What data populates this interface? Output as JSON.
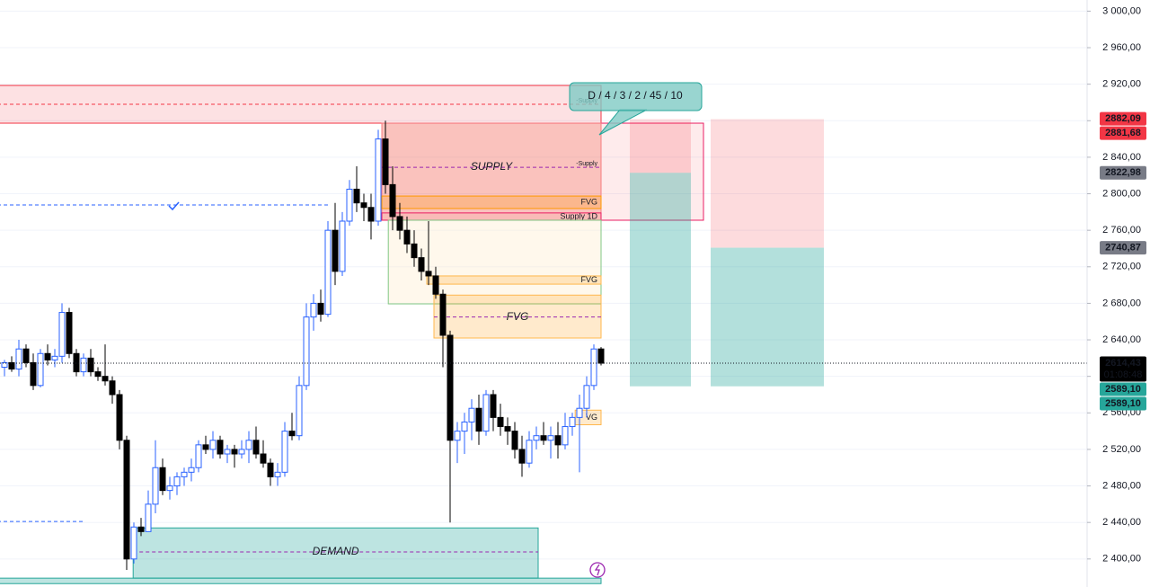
{
  "chart_data": {
    "type": "candlestick",
    "ylim": [
      2369.3,
      3012.2
    ],
    "yticks": [
      {
        "value": 2400,
        "label": "2 400,00"
      },
      {
        "value": 2440,
        "label": "2 440,00"
      },
      {
        "value": 2480,
        "label": "2 480,00"
      },
      {
        "value": 2520,
        "label": "2 520,00"
      },
      {
        "value": 2560,
        "label": "2 560,00"
      },
      {
        "value": 2600,
        "label": "2 600,00"
      },
      {
        "value": 2640,
        "label": "2 640,00"
      },
      {
        "value": 2680,
        "label": "2 680,00"
      },
      {
        "value": 2720,
        "label": "2 720,00"
      },
      {
        "value": 2760,
        "label": "2 760,00"
      },
      {
        "value": 2800,
        "label": "2 800,00"
      },
      {
        "value": 2840,
        "label": "2 840,00"
      },
      {
        "value": 2880,
        "label": "2 880,00"
      },
      {
        "value": 2920,
        "label": "2 920,00"
      },
      {
        "value": 2960,
        "label": "2 960,00"
      },
      {
        "value": 3000,
        "label": "3 000,00"
      }
    ],
    "grid": true,
    "up_color": "#2962ff",
    "down_color": "#000000",
    "open": [
      2610,
      2615,
      2608,
      2630,
      2615,
      2590,
      2625,
      2618,
      2622,
      2670,
      2625,
      2605,
      2620,
      2605,
      2600,
      2595,
      2580,
      2530,
      2400,
      2435,
      2430,
      2460,
      2500,
      2475,
      2480,
      2490,
      2495,
      2500,
      2525,
      2520,
      2530,
      2515,
      2520,
      2515,
      2520,
      2530,
      2515,
      2505,
      2490,
      2495,
      2540,
      2535,
      2590,
      2665,
      2680,
      2668,
      2760,
      2715,
      2770,
      2805,
      2790,
      2785,
      2770,
      2860,
      2810,
      2775,
      2760,
      2745,
      2730,
      2715,
      2710,
      2690,
      2645,
      2530,
      2540,
      2550,
      2565,
      2540,
      2580,
      2555,
      2545,
      2540,
      2520,
      2505,
      2530,
      2535,
      2530,
      2535,
      2525,
      2545,
      2555,
      2565,
      2590,
      2630
    ],
    "high": [
      2618,
      2622,
      2640,
      2635,
      2625,
      2630,
      2635,
      2630,
      2680,
      2675,
      2630,
      2625,
      2630,
      2610,
      2635,
      2600,
      2585,
      2535,
      2440,
      2445,
      2475,
      2530,
      2510,
      2490,
      2495,
      2500,
      2510,
      2530,
      2535,
      2540,
      2535,
      2525,
      2525,
      2530,
      2540,
      2545,
      2530,
      2510,
      2505,
      2550,
      2560,
      2600,
      2680,
      2690,
      2695,
      2770,
      2790,
      2780,
      2815,
      2830,
      2800,
      2800,
      2870,
      2880,
      2830,
      2790,
      2775,
      2760,
      2740,
      2770,
      2720,
      2695,
      2650,
      2550,
      2560,
      2575,
      2580,
      2585,
      2585,
      2570,
      2555,
      2550,
      2535,
      2540,
      2545,
      2550,
      2545,
      2550,
      2560,
      2560,
      2580,
      2600,
      2635,
      2632
    ],
    "low": [
      2600,
      2605,
      2600,
      2610,
      2585,
      2588,
      2612,
      2610,
      2615,
      2620,
      2600,
      2600,
      2600,
      2595,
      2590,
      2570,
      2520,
      2388,
      2395,
      2425,
      2430,
      2450,
      2470,
      2465,
      2470,
      2480,
      2485,
      2495,
      2515,
      2510,
      2510,
      2505,
      2500,
      2510,
      2505,
      2510,
      2500,
      2480,
      2480,
      2490,
      2530,
      2530,
      2585,
      2650,
      2660,
      2665,
      2700,
      2710,
      2765,
      2780,
      2770,
      2750,
      2765,
      2800,
      2760,
      2750,
      2735,
      2720,
      2705,
      2700,
      2685,
      2610,
      2440,
      2505,
      2515,
      2530,
      2525,
      2535,
      2540,
      2535,
      2525,
      2510,
      2490,
      2500,
      2520,
      2525,
      2510,
      2510,
      2520,
      2535,
      2495,
      2555,
      2585,
      2612
    ],
    "close": [
      2615,
      2608,
      2630,
      2615,
      2590,
      2625,
      2618,
      2622,
      2670,
      2625,
      2605,
      2620,
      2605,
      2600,
      2595,
      2580,
      2530,
      2400,
      2435,
      2430,
      2460,
      2500,
      2475,
      2480,
      2490,
      2495,
      2500,
      2525,
      2520,
      2530,
      2515,
      2520,
      2515,
      2520,
      2530,
      2515,
      2505,
      2490,
      2495,
      2540,
      2535,
      2590,
      2665,
      2680,
      2668,
      2760,
      2715,
      2770,
      2805,
      2790,
      2785,
      2770,
      2860,
      2810,
      2775,
      2760,
      2745,
      2730,
      2715,
      2710,
      2690,
      2645,
      2530,
      2540,
      2550,
      2565,
      2540,
      2580,
      2555,
      2545,
      2540,
      2520,
      2505,
      2530,
      2535,
      2530,
      2535,
      2525,
      2545,
      2555,
      2565,
      2590,
      2630,
      2614.43
    ],
    "zones": [
      {
        "from": -1,
        "to": 83,
        "low": 2877.3,
        "high": 2918.6,
        "mid": 2898,
        "color": "#f23645",
        "fill": "rgba(242,54,69,0.15)",
        "tag": "-Supply"
      },
      {
        "from": 52.5,
        "to": 97.25,
        "low": 2771,
        "high": 2877.3,
        "color": "#e91e63",
        "fill": "rgba(242,54,69,0.10)"
      },
      {
        "from": 52.5,
        "to": 83,
        "low": 2771,
        "high": 2877.3,
        "mid": 2829,
        "color": "#f77c80",
        "fill": "rgba(242,90,70,0.28)",
        "label": "SUPPLY",
        "tag": "-Supply"
      },
      {
        "from": 52.5,
        "to": 83,
        "low": 2783.8,
        "high": 2797.5,
        "color": "#ff9800",
        "fill": "rgba(255,152,0,0.25)",
        "label": "FVG"
      },
      {
        "from": 52.5,
        "to": 83,
        "low": 2771,
        "high": 2779,
        "color": "#e91e63",
        "fill": "rgba(242,54,69,0.05)",
        "label": "Supply 1D"
      },
      {
        "from": 53.4,
        "to": 83,
        "low": 2679.4,
        "high": 2771,
        "color": "#81c784",
        "fill": "rgba(255,236,200,0.35)"
      },
      {
        "from": 58.75,
        "to": 83,
        "low": 2701,
        "high": 2710,
        "color": "#ffb74d",
        "fill": "rgba(255,152,0,0.2)",
        "label": "FVG"
      },
      {
        "from": 59.75,
        "to": 83,
        "low": 2642,
        "high": 2689,
        "mid": 2665,
        "color": "#ffb74d",
        "fill": "rgba(255,152,0,0.2)",
        "label": "FVG"
      },
      {
        "from": 79.4,
        "to": 83,
        "low": 2547,
        "high": 2563,
        "color": "#ffb74d",
        "fill": "rgba(255,152,0,0.2)",
        "label": "VG"
      },
      {
        "from": 17.9,
        "to": 74.25,
        "low": 2379,
        "high": 2434,
        "mid": 2407.7,
        "color": "#26a69a",
        "fill": "rgba(38,166,154,0.3)",
        "label": "DEMAND"
      },
      {
        "from": -1,
        "to": 83,
        "low": 2373,
        "high": 2379,
        "color": "#26a69a",
        "fill": "rgba(38,166,154,0.3)"
      }
    ],
    "levels": [
      {
        "value": 2787.7,
        "from": -1,
        "to": 45,
        "color": "#2962ff"
      },
      {
        "value": 2441,
        "from": -1,
        "to": 11,
        "color": "#2962ff"
      }
    ],
    "positions": [
      {
        "from": 87,
        "to": 95.5,
        "entry": 2822.98,
        "stop": 2881.68,
        "target": 2589.1
      },
      {
        "from": 98.25,
        "to": 114,
        "entry": 2740.87,
        "stop": 2881.68,
        "target": 2589.1
      }
    ],
    "price_labels": {
      "values": [
        2882.09,
        2881.68,
        2822.98,
        2740.87,
        2614.43,
        2589.1,
        2589.1
      ],
      "value_labels": [
        "2882,09",
        "2881,68",
        "2822,98",
        "2740,87",
        "2614,43",
        "2589,10",
        "2589,10"
      ],
      "colors": [
        "#f23645",
        "#f23645",
        "#787b86",
        "#787b86",
        "#000000",
        "#26a69a",
        "#26a69a"
      ]
    },
    "countdown": "01:08:48",
    "annotation": "D / 4 / 3 / 2 / 45 / 10"
  }
}
